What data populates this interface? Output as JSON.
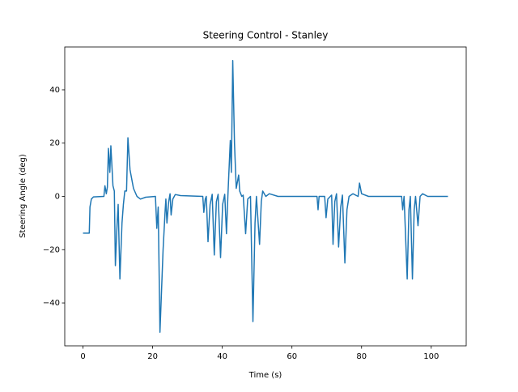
{
  "chart_data": {
    "type": "line",
    "title": "Steering Control - Stanley",
    "x_label": "Time (s)",
    "y_label": "Steering Angle (deg)",
    "x": [
      0,
      1.8,
      2.0,
      2.4,
      3.0,
      6.0,
      6.3,
      6.7,
      7.0,
      7.3,
      7.7,
      8.0,
      8.6,
      9.0,
      9.3,
      9.8,
      10.1,
      10.6,
      11.2,
      11.6,
      12.0,
      12.5,
      12.9,
      13.5,
      14.5,
      15.5,
      16.5,
      18.0,
      20.8,
      21.2,
      21.6,
      22.1,
      23.0,
      23.4,
      23.6,
      23.8,
      24.1,
      24.6,
      25.0,
      25.3,
      25.8,
      26.5,
      28.0,
      34.4,
      34.7,
      35.1,
      35.4,
      35.9,
      36.5,
      37.1,
      37.7,
      38.3,
      38.8,
      39.5,
      40.1,
      40.7,
      41.2,
      41.6,
      42.3,
      42.6,
      43.0,
      43.5,
      44.0,
      44.7,
      45.0,
      45.6,
      46.0,
      46.7,
      47.3,
      48.1,
      48.8,
      49.4,
      49.8,
      50.7,
      51.2,
      51.6,
      52.5,
      53.5,
      56.0,
      67.2,
      67.5,
      67.8,
      69.4,
      69.8,
      70.3,
      71.4,
      71.8,
      72.3,
      72.8,
      73.4,
      74.0,
      74.5,
      75.2,
      75.8,
      76.4,
      77.5,
      79.0,
      79.4,
      80.0,
      82.0,
      91.5,
      91.8,
      92.2,
      93.1,
      93.6,
      94.0,
      94.6,
      95.1,
      95.5,
      96.2,
      96.8,
      97.5,
      99.0,
      104.8
    ],
    "series": [
      {
        "name": "Steering angle",
        "color": "#1f77b4",
        "values": [
          -13.8,
          -13.8,
          -4,
          -1,
          -0.2,
          0,
          4,
          1,
          3.5,
          18,
          9,
          19,
          4,
          2,
          -26,
          -10,
          -3,
          -31,
          -10,
          -3,
          2,
          2,
          22,
          10,
          3,
          0,
          -1,
          -0.3,
          0,
          -12,
          -4,
          -51,
          -20,
          -10,
          -5,
          -1,
          -10,
          -2,
          1,
          -7,
          -1,
          0.7,
          0.3,
          0,
          -6,
          -1,
          0,
          -17,
          -3,
          0.8,
          -22,
          -2,
          0.8,
          -23,
          -3,
          0.8,
          -14,
          0,
          21,
          9,
          51,
          20,
          3,
          8,
          2,
          0,
          0.5,
          -14,
          -1,
          0,
          -47,
          -10,
          0,
          -18,
          -2,
          2,
          0,
          1,
          0,
          0,
          -5,
          0,
          0,
          -8,
          -1,
          0.5,
          -18,
          -2,
          1,
          -19,
          -4,
          0.5,
          -25,
          -5,
          0,
          1,
          0,
          5,
          1,
          0,
          0,
          -5,
          0,
          -31,
          -5,
          0,
          -31,
          -5,
          0,
          -11,
          0,
          1,
          0,
          0
        ]
      }
    ],
    "xlim": [
      -5.24,
      110.04
    ],
    "ylim": [
      -56.1,
      56.1
    ],
    "xticks": [
      0,
      20,
      40,
      60,
      80,
      100
    ],
    "yticks": [
      {
        "value": -40,
        "label": "−40"
      },
      {
        "value": -20,
        "label": "−20"
      },
      0,
      20,
      40
    ]
  }
}
